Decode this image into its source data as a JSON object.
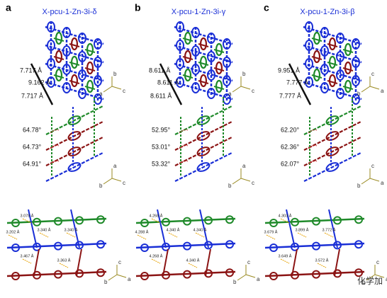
{
  "panels": [
    {
      "label": "a",
      "title": "X-pcu-1-Zn-3i-δ",
      "distances": [
        "7.717 Å",
        "9.162 Å",
        "7.717 Å"
      ],
      "angles": [
        "64.78°",
        "64.73°",
        "64.91°"
      ],
      "contacts": [
        "3.078 Å",
        "3.340 Å",
        "3.202 Å",
        "3.340 Å",
        "3.467 Å",
        "3.363 Å"
      ],
      "axes_top": [
        "b",
        "a",
        "c"
      ],
      "axes_mid": [
        "a",
        "b",
        "c"
      ],
      "axes_bottom": [
        "c",
        "b",
        "a"
      ]
    },
    {
      "label": "b",
      "title": "X-pcu-1-Zn-3i-γ",
      "distances": [
        "8.611 Å",
        "8.611 Å",
        "8.611 Å"
      ],
      "angles": [
        "52.95°",
        "53.01°",
        "53.32°"
      ],
      "contacts": [
        "4.268 Å",
        "4.340 Å",
        "4.288 Å",
        "4.340 Å",
        "4.268 Å",
        "4.340 Å"
      ],
      "axes_top": [
        "b",
        "a",
        "c"
      ],
      "axes_mid": [
        "a",
        "b",
        "c"
      ],
      "axes_bottom": [
        "c",
        "b",
        "a"
      ]
    },
    {
      "label": "c",
      "title": "X-pcu-1-Zn-3i-β",
      "distances": [
        "9.951 Å",
        "7.777 Å",
        "7.777 Å"
      ],
      "angles": [
        "62.20°",
        "62.36°",
        "62.07°"
      ],
      "contacts": [
        "4.303 Å",
        "3.899 Å",
        "3.679 Å",
        "3.772 Å",
        "3.649 Å",
        "3.572 Å"
      ],
      "axes_top": [
        "c",
        "b",
        "a"
      ],
      "axes_mid": [
        "c",
        "b",
        "a"
      ],
      "axes_bottom": [
        "c",
        "b",
        "a"
      ]
    }
  ],
  "watermark": "化学加"
}
